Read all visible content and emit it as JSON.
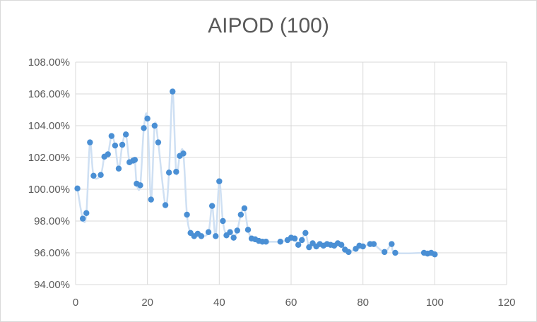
{
  "chart_data": {
    "type": "scatter",
    "title": "AIPOD (100)",
    "xlabel": "",
    "ylabel": "",
    "xlim": [
      0,
      120
    ],
    "ylim": [
      94,
      108
    ],
    "x_ticks": [
      "0",
      "20",
      "40",
      "60",
      "80",
      "100",
      "120"
    ],
    "y_ticks": [
      "94.00%",
      "96.00%",
      "98.00%",
      "100.00%",
      "102.00%",
      "104.00%",
      "106.00%",
      "108.00%"
    ],
    "grid": true,
    "legend": "none",
    "smoothed_line": true,
    "marker_color": "#4a8fd4",
    "line_color": "#cfe0f3",
    "series": [
      {
        "x": [
          0.5,
          2,
          3,
          4,
          5,
          7,
          8,
          9,
          10,
          11,
          12,
          13,
          14,
          15,
          16,
          16.5,
          17,
          18,
          19,
          20,
          21,
          22,
          23,
          25,
          26,
          27,
          28,
          29,
          30,
          31,
          32,
          33,
          34,
          35,
          37,
          38,
          39,
          40,
          41,
          42,
          43,
          44,
          45,
          46,
          47,
          48,
          49,
          50,
          51,
          52,
          53,
          57,
          59,
          60,
          61,
          62,
          63,
          64,
          65,
          66,
          67,
          68,
          69,
          70,
          71,
          72,
          73,
          74,
          75,
          76,
          78,
          79,
          80,
          82,
          83,
          86,
          88,
          89,
          97,
          98,
          99,
          100
        ],
        "y": [
          100.05,
          98.15,
          98.5,
          102.95,
          100.85,
          100.9,
          102.05,
          102.2,
          103.35,
          102.75,
          101.3,
          102.8,
          103.45,
          101.7,
          101.8,
          101.85,
          100.35,
          100.25,
          103.85,
          104.45,
          99.35,
          104.0,
          102.95,
          99.0,
          101.05,
          106.15,
          101.1,
          102.1,
          102.25,
          98.4,
          97.25,
          97.05,
          97.2,
          97.05,
          97.3,
          98.95,
          97.05,
          100.5,
          98.0,
          97.1,
          97.3,
          96.95,
          97.4,
          98.4,
          98.8,
          97.45,
          96.9,
          96.85,
          96.75,
          96.7,
          96.7,
          96.7,
          96.8,
          96.95,
          96.9,
          96.5,
          96.8,
          97.25,
          96.35,
          96.6,
          96.4,
          96.55,
          96.45,
          96.55,
          96.5,
          96.45,
          96.6,
          96.5,
          96.2,
          96.05,
          96.25,
          96.45,
          96.4,
          96.55,
          96.55,
          96.05,
          96.55,
          96.0,
          96.0,
          95.95,
          96.0,
          95.9
        ]
      }
    ]
  }
}
